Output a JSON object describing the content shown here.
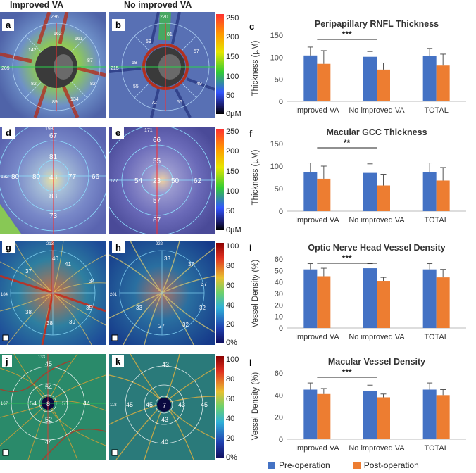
{
  "headers": {
    "improved": "Improved VA",
    "no_improved": "No improved VA"
  },
  "panel_labels": {
    "a": "a",
    "b": "b",
    "c": "c",
    "d": "d",
    "e": "e",
    "f": "f",
    "g": "g",
    "h": "h",
    "i": "i",
    "j": "j",
    "k": "k",
    "l": "l"
  },
  "scale_rnfl": {
    "ticks": [
      "250",
      "200",
      "150",
      "100",
      "50",
      "0µM"
    ]
  },
  "scale_gcc": {
    "ticks": [
      "250",
      "200",
      "150",
      "100",
      "50",
      "0µM"
    ]
  },
  "scale_vd1": {
    "ticks": [
      "100",
      "80",
      "60",
      "40",
      "20",
      "0%"
    ]
  },
  "scale_vd2": {
    "ticks": [
      "100",
      "80",
      "60",
      "40",
      "20",
      "0%"
    ]
  },
  "img_a": {
    "top": "236",
    "left": "209",
    "v1": "162",
    "v2": "161",
    "v3": "142",
    "v4": "87",
    "v5": "82",
    "v6": "82",
    "v7": "89",
    "v8": "134"
  },
  "img_b": {
    "top": "220",
    "left": "215",
    "v1": "81",
    "v2": "59",
    "v3": "57",
    "v4": "58",
    "v5": "55",
    "v6": "49",
    "v7": "72",
    "v8": "56"
  },
  "img_d": {
    "top": "198",
    "left": "182",
    "v1": "67",
    "v2": "81",
    "v3": "80",
    "v4": "43",
    "v5": "77",
    "v6": "66",
    "v7": "83",
    "v8": "80",
    "v9": "73"
  },
  "img_e": {
    "top": "171",
    "left": "177",
    "v1": "66",
    "v2": "55",
    "v3": "54",
    "v4": "23",
    "v5": "50",
    "v6": "62",
    "v7": "57",
    "v8": "67"
  },
  "img_g": {
    "top": "213",
    "left": "184",
    "v1": "40",
    "v2": "41",
    "v3": "37",
    "v4": "38",
    "v5": "34",
    "v6": "35",
    "v7": "38",
    "v8": "39"
  },
  "img_h": {
    "top": "222",
    "left": "201",
    "v1": "33",
    "v2": "37",
    "v3": "37",
    "v4": "33",
    "v5": "32",
    "v6": "27",
    "v7": "32"
  },
  "img_j": {
    "top": "133",
    "left": "167",
    "v1": "45",
    "v2": "54",
    "v3": "54",
    "v4": "8",
    "v5": "51",
    "v6": "44",
    "v7": "52",
    "v8": "44"
  },
  "img_k": {
    "top": "118",
    "v1": "43",
    "v2": "45",
    "v3": "45",
    "v4": "7",
    "v5": "43",
    "v6": "43",
    "v7": "45",
    "v8": "40"
  },
  "chart_data": [
    {
      "type": "bar",
      "id": "c",
      "title": "Peripapillary RNFL Thickness",
      "ylabel": "Thickness (µM)",
      "categories": [
        "Improved VA",
        "No improved VA",
        "TOTAL"
      ],
      "ylim": [
        0,
        150
      ],
      "yticks": [
        0,
        50,
        100,
        150
      ],
      "series": [
        {
          "name": "Pre-operation",
          "color": "#4472C4",
          "values": [
            104,
            101,
            103
          ],
          "errors": [
            19,
            12,
            17
          ]
        },
        {
          "name": "Post-operation",
          "color": "#ED7D31",
          "values": [
            85,
            72,
            81
          ],
          "errors": [
            30,
            15,
            26
          ]
        }
      ],
      "significance": {
        "label": "***",
        "from": 0,
        "to": 1
      }
    },
    {
      "type": "bar",
      "id": "f",
      "title": "Macular GCC Thickness",
      "ylabel": "Thickness (µM)",
      "categories": [
        "Improved VA",
        "No improved VA",
        "TOTAL"
      ],
      "ylim": [
        0,
        150
      ],
      "yticks": [
        0,
        50,
        100,
        150
      ],
      "series": [
        {
          "name": "Pre-operation",
          "color": "#4472C4",
          "values": [
            87,
            85,
            87
          ],
          "errors": [
            20,
            20,
            20
          ]
        },
        {
          "name": "Post-operation",
          "color": "#ED7D31",
          "values": [
            72,
            57,
            68
          ],
          "errors": [
            28,
            25,
            29
          ]
        }
      ],
      "significance": {
        "label": "**",
        "from": 0,
        "to": 1
      }
    },
    {
      "type": "bar",
      "id": "i",
      "title": "Optic Nerve Head Vessel Density",
      "ylabel": "Vessel Density (%)",
      "categories": [
        "Improved VA",
        "No improved VA",
        "TOTAL"
      ],
      "ylim": [
        0,
        60
      ],
      "yticks": [
        0,
        10,
        20,
        30,
        40,
        50,
        60
      ],
      "series": [
        {
          "name": "Pre-operation",
          "color": "#4472C4",
          "values": [
            51,
            52,
            51
          ],
          "errors": [
            5,
            4,
            5
          ]
        },
        {
          "name": "Post-operation",
          "color": "#ED7D31",
          "values": [
            45,
            41,
            44
          ],
          "errors": [
            7,
            3,
            7
          ]
        }
      ],
      "significance": {
        "label": "***",
        "from": 0,
        "to": 1
      }
    },
    {
      "type": "bar",
      "id": "l",
      "title": "Macular Vessel Density",
      "ylabel": "Vessel Density (%)",
      "categories": [
        "Improved VA",
        "No improved VA",
        "TOTAL"
      ],
      "ylim": [
        0,
        60
      ],
      "yticks": [
        0,
        20,
        40,
        60
      ],
      "series": [
        {
          "name": "Pre-operation",
          "color": "#4472C4",
          "values": [
            45,
            44,
            45
          ],
          "errors": [
            6,
            5,
            6
          ]
        },
        {
          "name": "Post-operation",
          "color": "#ED7D31",
          "values": [
            41,
            38,
            40
          ],
          "errors": [
            5,
            3,
            5
          ]
        }
      ],
      "significance": {
        "label": "***",
        "from": 0,
        "to": 1
      }
    }
  ],
  "legend": {
    "pre": "Pre-operation",
    "post": "Post-operation",
    "pre_color": "#4472C4",
    "post_color": "#ED7D31"
  }
}
